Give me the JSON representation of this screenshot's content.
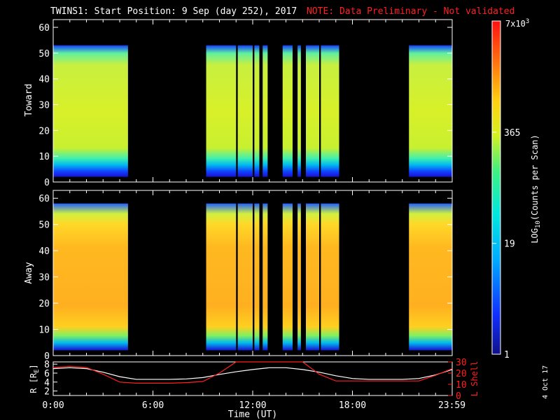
{
  "header": {
    "title": "TWINS1: Start Position:  9 Sep (day 252), 2017",
    "note": "NOTE: Data Preliminary - Not validated"
  },
  "footer": {
    "date_stamp": "4 Oct 17"
  },
  "colors": {
    "note": "#ff2020",
    "r_line": "#ffffff",
    "lshell_line": "#ff2020"
  },
  "chart_data": [
    {
      "type": "heatmap",
      "ylabel": "Toward",
      "ylim": [
        0,
        63
      ],
      "yticks": [
        0,
        10,
        20,
        30,
        40,
        50,
        60
      ],
      "xlim_hours": [
        0,
        24
      ],
      "data_windows_hours": [
        [
          0.0,
          4.5
        ],
        [
          9.2,
          11.0
        ],
        [
          11.1,
          12.0
        ],
        [
          12.1,
          12.4
        ],
        [
          12.6,
          12.9
        ],
        [
          13.8,
          14.4
        ],
        [
          14.7,
          14.9
        ],
        [
          15.2,
          16.0
        ],
        [
          16.1,
          17.2
        ],
        [
          21.4,
          23.99
        ]
      ],
      "upper_edge": 53,
      "lower_edge": 2
    },
    {
      "type": "heatmap",
      "ylabel": "Away",
      "ylim": [
        0,
        63
      ],
      "yticks": [
        0,
        10,
        20,
        30,
        40,
        50,
        60
      ],
      "xlim_hours": [
        0,
        24
      ],
      "data_windows_hours": [
        [
          0.0,
          4.5
        ],
        [
          9.2,
          11.0
        ],
        [
          11.1,
          12.0
        ],
        [
          12.1,
          12.4
        ],
        [
          12.6,
          12.9
        ],
        [
          13.8,
          14.4
        ],
        [
          14.7,
          14.9
        ],
        [
          15.2,
          16.0
        ],
        [
          16.1,
          17.2
        ],
        [
          21.4,
          23.99
        ]
      ],
      "upper_edge": 58,
      "lower_edge": 2
    },
    {
      "type": "line",
      "ylabel_left": "R [R",
      "ylabel_left_sub": "E",
      "ylabel_left_end": "]",
      "ylabel_right": "L Shell",
      "yticks_left": [
        2,
        4,
        6,
        8
      ],
      "yticks_right": [
        0,
        10,
        20,
        30
      ],
      "ylim_left": [
        1,
        8.5
      ],
      "ylim_right": [
        0,
        30
      ],
      "xlabel": "Time (UT)",
      "xticks": [
        "0:00",
        "6:00",
        "12:00",
        "18:00",
        "23:59"
      ],
      "xtick_hours": [
        0,
        6,
        12,
        18,
        23.98
      ],
      "series": [
        {
          "axis": "left",
          "x": [
            0,
            1,
            2,
            3,
            4,
            5,
            6,
            7,
            8,
            9,
            10,
            11,
            12,
            13,
            14,
            15,
            16,
            17,
            18,
            19,
            20,
            21,
            22,
            23,
            24
          ],
          "values": [
            7.0,
            7.2,
            7.0,
            6.2,
            5.2,
            4.6,
            4.6,
            4.6,
            4.7,
            5.0,
            5.7,
            6.3,
            6.8,
            7.2,
            7.2,
            6.8,
            6.2,
            5.4,
            4.8,
            4.6,
            4.6,
            4.6,
            4.8,
            5.6,
            6.8
          ]
        },
        {
          "axis": "right",
          "x": [
            0,
            1,
            2,
            3,
            4,
            5,
            6,
            7,
            8,
            9,
            10,
            11,
            15,
            16,
            17,
            18,
            19,
            20,
            21,
            22,
            23,
            24
          ],
          "values": [
            25,
            26,
            25,
            19,
            12,
            11,
            11,
            11,
            11.5,
            12.5,
            20,
            30,
            30,
            19,
            13,
            13,
            13,
            13,
            13,
            13,
            18,
            24
          ]
        }
      ]
    },
    {
      "type": "colorbar",
      "label": "LOG",
      "label_sub": "10",
      "label_end": "(Counts per Scan)",
      "ticks": [
        "1",
        "19",
        "365"
      ],
      "top_label": "7x10",
      "top_label_sup": "3",
      "range": [
        1,
        7000
      ]
    }
  ]
}
